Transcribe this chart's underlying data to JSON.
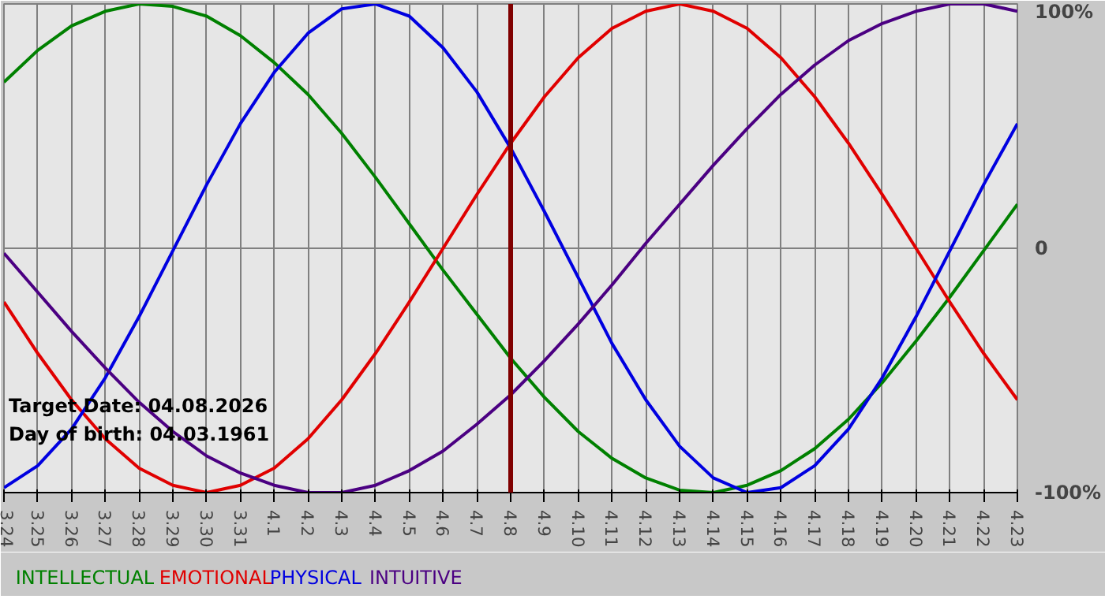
{
  "chart_data": {
    "type": "line",
    "categories": [
      "3.24",
      "3.25",
      "3.26",
      "3.27",
      "3.28",
      "3.29",
      "3.30",
      "3.31",
      "4.1",
      "4.2",
      "4.3",
      "4.4",
      "4.5",
      "4.6",
      "4.7",
      "4.8",
      "4.9",
      "4.10",
      "4.11",
      "4.12",
      "4.13",
      "4.14",
      "4.15",
      "4.16",
      "4.17",
      "4.18",
      "4.19",
      "4.20",
      "4.21",
      "4.22",
      "4.23"
    ],
    "series": [
      {
        "name": "INTELLECTUAL",
        "color": "#008000",
        "values": [
          68,
          81,
          91,
          97,
          100,
          99,
          95,
          87,
          76,
          63,
          47,
          29,
          10,
          -9,
          -27,
          -45,
          -61,
          -75,
          -86,
          -94,
          -99,
          -100,
          -97,
          -91,
          -82,
          -70,
          -55,
          -38,
          -20,
          -1,
          18
        ]
      },
      {
        "name": "EMOTIONAL",
        "color": "#e00000",
        "values": [
          -22,
          -43,
          -62,
          -78,
          -90,
          -97,
          -100,
          -97,
          -90,
          -78,
          -62,
          -43,
          -22,
          0,
          22,
          43,
          62,
          78,
          90,
          97,
          100,
          97,
          90,
          78,
          62,
          43,
          22,
          0,
          -22,
          -43,
          -62
        ]
      },
      {
        "name": "PHYSICAL",
        "color": "#0000e0",
        "values": [
          -98,
          -89,
          -74,
          -53,
          -28,
          -1,
          26,
          51,
          72,
          88,
          98,
          100,
          95,
          82,
          64,
          41,
          15,
          -12,
          -39,
          -62,
          -81,
          -94,
          -100,
          -98,
          -89,
          -74,
          -53,
          -28,
          -1,
          26,
          51
        ]
      },
      {
        "name": "INTUITIVE",
        "color": "#4b0082",
        "values": [
          -2,
          -18,
          -34,
          -49,
          -63,
          -75,
          -85,
          -92,
          -97,
          -100,
          -100,
          -97,
          -91,
          -83,
          -72,
          -60,
          -46,
          -31,
          -15,
          2,
          18,
          34,
          49,
          63,
          75,
          85,
          92,
          97,
          100,
          100,
          97
        ]
      }
    ],
    "ylim": [
      -100,
      100
    ],
    "yticks": [
      {
        "value": 100,
        "label": "100%"
      },
      0,
      {
        "value": -100,
        "label": "-100%"
      }
    ],
    "grid": true,
    "line_style": "solid",
    "ref_lines": [
      {
        "axis": "x",
        "value": "4.8",
        "color": "#800000"
      }
    ],
    "annotations": [
      "Target Date: 04.08.2026",
      "Day of birth: 04.03.1961"
    ]
  }
}
